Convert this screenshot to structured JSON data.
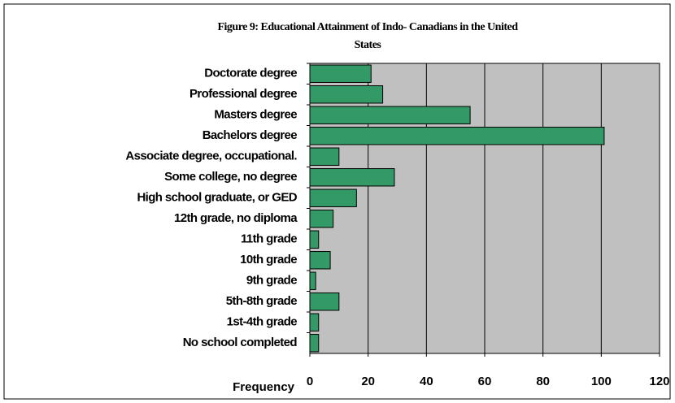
{
  "chart_data": {
    "type": "bar",
    "orientation": "horizontal",
    "title": [
      "Figure 9: Educational Attainment of Indo- Canadians in the United",
      "States"
    ],
    "x_label": "Frequency",
    "categories": [
      "Doctorate degree",
      "Professional degree",
      "Masters degree",
      "Bachelors degree",
      "Associate degree, occupational.",
      "Some college, no degree",
      "High school graduate, or GED",
      "12th grade, no diploma",
      "11th grade",
      "10th grade",
      "9th grade",
      "5th-8th grade",
      "1st-4th grade",
      "No school completed"
    ],
    "values": [
      21,
      25,
      55,
      101,
      10,
      29,
      16,
      8,
      3,
      7,
      2,
      10,
      3,
      3
    ],
    "color": "#339966",
    "xlim": [
      0,
      120
    ],
    "xticks": [
      0,
      20,
      40,
      60,
      80,
      100,
      120
    ],
    "grid": true
  }
}
